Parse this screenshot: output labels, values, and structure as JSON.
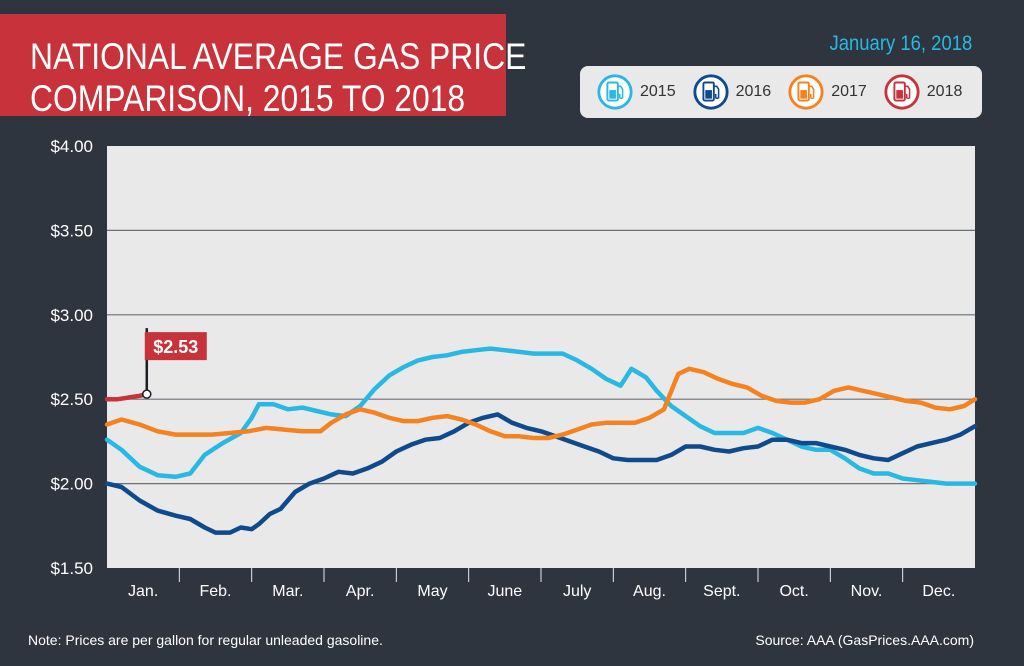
{
  "header": {
    "title_line1": "NATIONAL AVERAGE GAS PRICE",
    "title_line2": "COMPARISON, 2015 TO 2018",
    "date": "January 16, 2018"
  },
  "legend": [
    {
      "label": "2015",
      "color": "#29b8e3",
      "icon": "gas-pump-icon"
    },
    {
      "label": "2016",
      "color": "#0e4a8c",
      "icon": "gas-pump-icon"
    },
    {
      "label": "2017",
      "color": "#f5821f",
      "icon": "gas-pump-icon"
    },
    {
      "label": "2018",
      "color": "#c8323b",
      "icon": "gas-pump-icon"
    }
  ],
  "footer": {
    "note": "Note: Prices are per gallon for regular unleaded gasoline.",
    "source": "Source: AAA (GasPrices.AAA.com)"
  },
  "chart_data": {
    "type": "line",
    "title": "NATIONAL AVERAGE GAS PRICE COMPARISON, 2015 TO 2018",
    "categories": [
      "Jan.",
      "Feb.",
      "Mar.",
      "Apr.",
      "May",
      "June",
      "July",
      "Aug.",
      "Sept.",
      "Oct.",
      "Nov.",
      "Dec."
    ],
    "y_tick_labels": [
      "$4.00",
      "$3.50",
      "$3.00",
      "$2.50",
      "$2.00",
      "$1.50"
    ],
    "ylim": [
      1.5,
      4.0
    ],
    "xlim": [
      0,
      12
    ],
    "grid": "horizontal",
    "legend_position": "top-right",
    "callout": {
      "label": "$2.53",
      "series": "2018",
      "x": 0.55,
      "y": 2.53
    },
    "series": [
      {
        "name": "2015",
        "color": "#29b8e3",
        "x": [
          0,
          0.2,
          0.45,
          0.7,
          0.95,
          1.15,
          1.35,
          1.6,
          1.85,
          2.0,
          2.1,
          2.3,
          2.5,
          2.7,
          2.9,
          3.1,
          3.3,
          3.5,
          3.7,
          3.9,
          4.1,
          4.3,
          4.5,
          4.7,
          4.9,
          5.1,
          5.3,
          5.5,
          5.7,
          5.9,
          6.1,
          6.3,
          6.5,
          6.7,
          6.9,
          7.1,
          7.25,
          7.45,
          7.6,
          7.8,
          8.0,
          8.2,
          8.4,
          8.6,
          8.8,
          9.0,
          9.2,
          9.4,
          9.6,
          9.8,
          10.0,
          10.2,
          10.4,
          10.6,
          10.8,
          11.0,
          11.2,
          11.4,
          11.6,
          12.0
        ],
        "values": [
          2.26,
          2.2,
          2.1,
          2.05,
          2.04,
          2.06,
          2.17,
          2.24,
          2.3,
          2.39,
          2.47,
          2.47,
          2.44,
          2.45,
          2.43,
          2.41,
          2.4,
          2.46,
          2.56,
          2.64,
          2.69,
          2.73,
          2.75,
          2.76,
          2.78,
          2.79,
          2.8,
          2.79,
          2.78,
          2.77,
          2.77,
          2.77,
          2.73,
          2.68,
          2.62,
          2.58,
          2.68,
          2.63,
          2.55,
          2.46,
          2.4,
          2.34,
          2.3,
          2.3,
          2.3,
          2.33,
          2.3,
          2.26,
          2.22,
          2.2,
          2.2,
          2.15,
          2.09,
          2.06,
          2.06,
          2.03,
          2.02,
          2.01,
          2.0,
          2.0
        ]
      },
      {
        "name": "2016",
        "color": "#0e4a8c",
        "x": [
          0,
          0.2,
          0.45,
          0.7,
          0.95,
          1.15,
          1.35,
          1.5,
          1.7,
          1.85,
          2.0,
          2.1,
          2.25,
          2.4,
          2.6,
          2.8,
          3.0,
          3.2,
          3.4,
          3.6,
          3.8,
          4.0,
          4.2,
          4.4,
          4.6,
          4.8,
          5.0,
          5.2,
          5.4,
          5.6,
          5.8,
          6.0,
          6.2,
          6.4,
          6.6,
          6.8,
          7.0,
          7.2,
          7.4,
          7.6,
          7.8,
          8.0,
          8.2,
          8.4,
          8.6,
          8.8,
          9.0,
          9.2,
          9.4,
          9.6,
          9.8,
          10.0,
          10.2,
          10.4,
          10.6,
          10.8,
          11.0,
          11.2,
          11.4,
          11.6,
          11.8,
          12.0
        ],
        "values": [
          2.0,
          1.98,
          1.9,
          1.84,
          1.81,
          1.79,
          1.74,
          1.71,
          1.71,
          1.74,
          1.73,
          1.76,
          1.82,
          1.85,
          1.95,
          2.0,
          2.03,
          2.07,
          2.06,
          2.09,
          2.13,
          2.19,
          2.23,
          2.26,
          2.27,
          2.31,
          2.36,
          2.39,
          2.41,
          2.36,
          2.33,
          2.31,
          2.28,
          2.25,
          2.22,
          2.19,
          2.15,
          2.14,
          2.14,
          2.14,
          2.17,
          2.22,
          2.22,
          2.2,
          2.19,
          2.21,
          2.22,
          2.26,
          2.26,
          2.24,
          2.24,
          2.22,
          2.2,
          2.17,
          2.15,
          2.14,
          2.18,
          2.22,
          2.24,
          2.26,
          2.29,
          2.34
        ]
      },
      {
        "name": "2017",
        "color": "#f5821f",
        "x": [
          0,
          0.2,
          0.45,
          0.7,
          0.95,
          1.2,
          1.45,
          1.7,
          1.95,
          2.2,
          2.45,
          2.7,
          2.95,
          3.1,
          3.3,
          3.5,
          3.7,
          3.9,
          4.1,
          4.3,
          4.5,
          4.7,
          4.9,
          5.1,
          5.3,
          5.5,
          5.7,
          5.9,
          6.1,
          6.3,
          6.5,
          6.7,
          6.9,
          7.1,
          7.3,
          7.5,
          7.7,
          7.85,
          7.9,
          8.05,
          8.25,
          8.45,
          8.65,
          8.85,
          9.05,
          9.25,
          9.45,
          9.65,
          9.85,
          10.05,
          10.25,
          10.45,
          10.65,
          10.85,
          11.05,
          11.25,
          11.45,
          11.65,
          11.85,
          12.0
        ],
        "values": [
          2.35,
          2.38,
          2.35,
          2.31,
          2.29,
          2.29,
          2.29,
          2.3,
          2.31,
          2.33,
          2.32,
          2.31,
          2.31,
          2.36,
          2.41,
          2.44,
          2.42,
          2.39,
          2.37,
          2.37,
          2.39,
          2.4,
          2.38,
          2.35,
          2.31,
          2.28,
          2.28,
          2.27,
          2.27,
          2.29,
          2.32,
          2.35,
          2.36,
          2.36,
          2.36,
          2.39,
          2.44,
          2.6,
          2.65,
          2.68,
          2.66,
          2.62,
          2.59,
          2.57,
          2.52,
          2.49,
          2.48,
          2.48,
          2.5,
          2.55,
          2.57,
          2.55,
          2.53,
          2.51,
          2.49,
          2.48,
          2.45,
          2.44,
          2.46,
          2.5
        ]
      },
      {
        "name": "2018",
        "color": "#c8323b",
        "x": [
          0,
          0.15,
          0.3,
          0.45,
          0.55
        ],
        "values": [
          2.5,
          2.5,
          2.51,
          2.52,
          2.53
        ]
      }
    ]
  }
}
